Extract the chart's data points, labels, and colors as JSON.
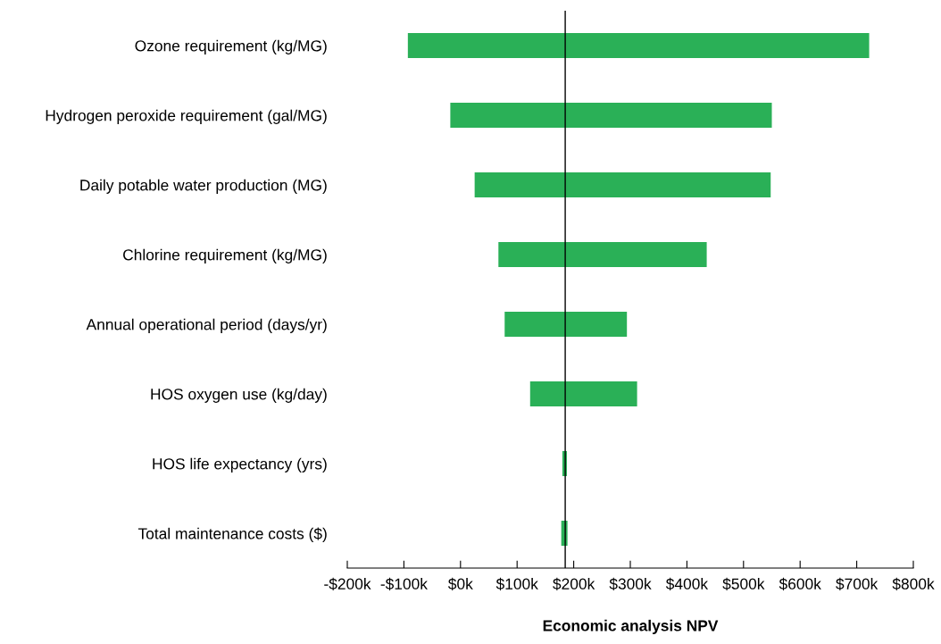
{
  "chart_data": {
    "type": "bar",
    "orientation": "horizontal",
    "xlabel": "Economic analysis NPV",
    "categories": [
      "Ozone requirement (kg/MG)",
      "Hydrogen peroxide requirement (gal/MG)",
      "Daily potable water production (MG)",
      "Chlorine requirement (kg/MG)",
      "Annual operational period (days/yr)",
      "HOS oxygen use (kg/day)",
      "HOS life expectancy (yrs)",
      "Total maintenance costs ($)"
    ],
    "base": [
      -93,
      -18,
      25,
      67,
      78,
      123,
      180,
      178
    ],
    "values": [
      815,
      568,
      523,
      368,
      216,
      189,
      8,
      11
    ],
    "color": "#2ab057",
    "xlim": [
      -200,
      800
    ],
    "xticks": [
      {
        "value": -200,
        "label": "-$200k"
      },
      {
        "value": -100,
        "label": "-$100k"
      },
      {
        "value": 0,
        "label": "$0k"
      },
      {
        "value": 100,
        "label": "$100k"
      },
      {
        "value": 200,
        "label": "$200k"
      },
      {
        "value": 300,
        "label": "$300k"
      },
      {
        "value": 400,
        "label": "$400k"
      },
      {
        "value": 500,
        "label": "$500k"
      },
      {
        "value": 600,
        "label": "$600k"
      },
      {
        "value": 700,
        "label": "$700k"
      },
      {
        "value": 800,
        "label": "$800k"
      }
    ],
    "ref_lines": [
      {
        "axis": "x",
        "value": 185,
        "color": "#000000"
      }
    ],
    "grid": false,
    "legend": false
  }
}
